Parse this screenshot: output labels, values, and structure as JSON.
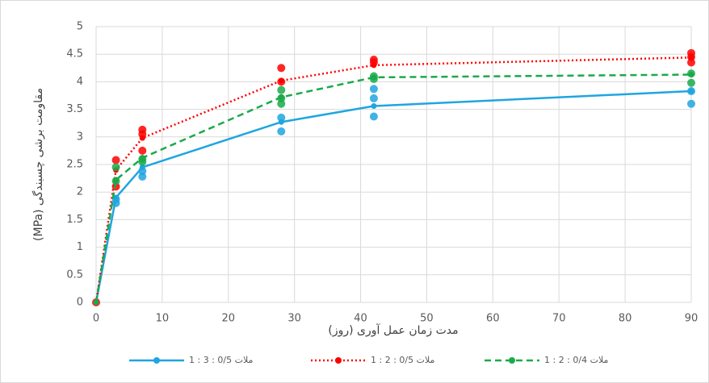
{
  "chart_data": {
    "type": "line",
    "xlabel": "مدت زمان عمل آوری (روز)",
    "ylabel": "مقاومت برشی چسبندگی (MPa)",
    "xlim": [
      0,
      90
    ],
    "xticks": [
      0,
      10,
      20,
      30,
      40,
      50,
      60,
      70,
      80,
      90
    ],
    "ylim": [
      0,
      5
    ],
    "yticks": [
      0,
      0.5,
      1,
      1.5,
      2,
      2.5,
      3,
      3.5,
      4,
      4.5,
      5
    ],
    "grid": true,
    "series": [
      {
        "name": "ملات 0/5 : 3 : 1",
        "color": "#1fa5e0",
        "linestyle": "solid",
        "x": [
          0,
          3,
          7,
          28,
          42,
          90
        ],
        "values": [
          0,
          1.9,
          2.45,
          3.27,
          3.56,
          3.83
        ],
        "samples_x": [
          3,
          3,
          7,
          7,
          28,
          28,
          42,
          42,
          42,
          90,
          90
        ],
        "samples_y": [
          1.87,
          1.8,
          2.38,
          2.28,
          3.1,
          3.35,
          3.37,
          3.7,
          3.87,
          3.6,
          3.83
        ]
      },
      {
        "name": "ملات 0/5 : 2 : 1",
        "color": "#ff0000",
        "linestyle": "dotted",
        "x": [
          0,
          3,
          7,
          28,
          42,
          90
        ],
        "values": [
          0,
          2.4,
          2.98,
          4.02,
          4.3,
          4.44
        ],
        "samples_x": [
          0,
          3,
          3,
          7,
          7,
          7,
          28,
          28,
          42,
          42,
          90,
          90,
          90
        ],
        "samples_y": [
          0,
          2.58,
          2.1,
          3.13,
          3.05,
          2.75,
          4.25,
          4.0,
          4.4,
          4.35,
          4.52,
          4.45,
          4.35
        ]
      },
      {
        "name": "ملات 0/4 : 2 : 1",
        "color": "#1aaa4a",
        "linestyle": "dashed",
        "x": [
          0,
          3,
          7,
          28,
          42,
          90
        ],
        "values": [
          0,
          2.22,
          2.62,
          3.72,
          4.08,
          4.13
        ],
        "samples_x": [
          3,
          3,
          7,
          7,
          28,
          28,
          28,
          42,
          42,
          90,
          90
        ],
        "samples_y": [
          2.45,
          2.2,
          2.6,
          2.55,
          3.85,
          3.6,
          3.7,
          4.1,
          4.05,
          4.15,
          3.98
        ]
      }
    ]
  }
}
